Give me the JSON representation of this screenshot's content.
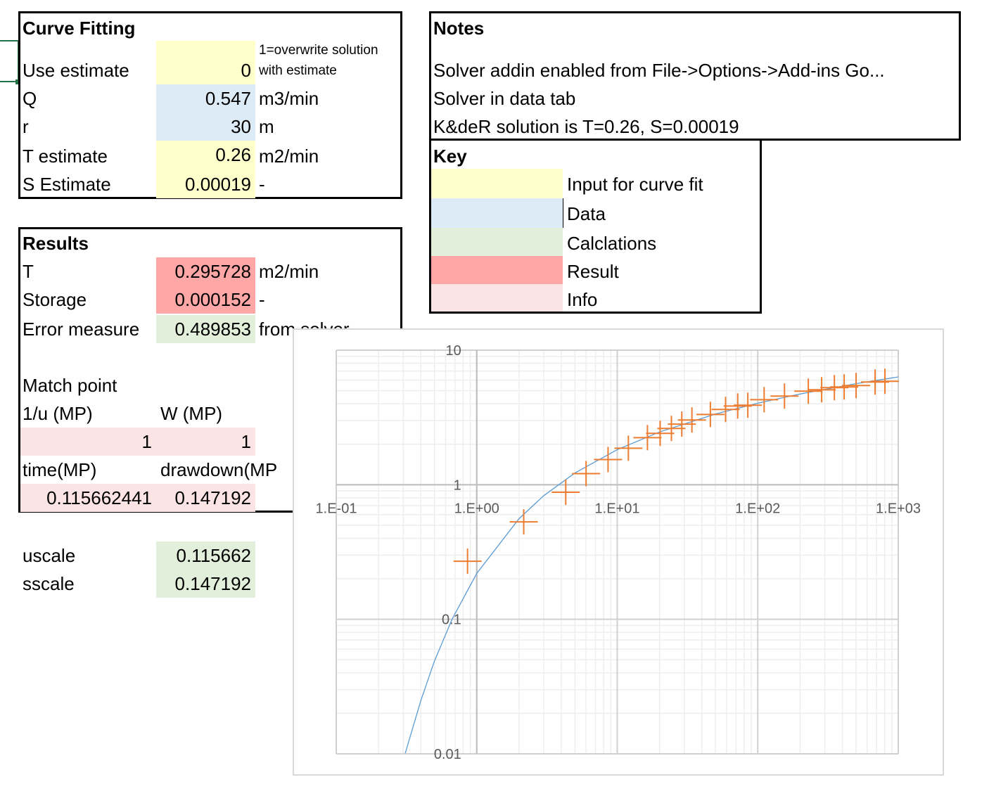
{
  "curve_fitting": {
    "title": "Curve Fitting",
    "note_line1": "1=overwrite solution",
    "note_line2": "with estimate",
    "rows": [
      {
        "label": "Use estimate",
        "value": "0",
        "unit": ""
      },
      {
        "label": "Q",
        "value": "0.547",
        "unit": "m3/min"
      },
      {
        "label": "r",
        "value": "30",
        "unit": "m"
      },
      {
        "label": "T estimate",
        "value": "0.26",
        "unit": "m2/min"
      },
      {
        "label": "S Estimate",
        "value": "0.00019",
        "unit": "-"
      }
    ]
  },
  "results": {
    "title": "Results",
    "rows": [
      {
        "label": "T",
        "value": "0.295728",
        "unit": "m2/min"
      },
      {
        "label": "Storage",
        "value": "0.000152",
        "unit": "-"
      },
      {
        "label": "Error measure",
        "value": "0.489853",
        "unit": "from solver"
      }
    ],
    "match_point": "Match point",
    "inv_u_label": "1/u (MP)",
    "w_label": "W (MP)",
    "inv_u_value": "1",
    "w_value": "1",
    "time_label": "time(MP)",
    "drawdown_label": "drawdown(MP",
    "time_value": "0.115662441",
    "drawdown_value": "0.147192"
  },
  "scales": {
    "uscale_label": "uscale",
    "uscale_value": "0.115662",
    "sscale_label": "sscale",
    "sscale_value": "0.147192"
  },
  "notes": {
    "title": "Notes",
    "lines": [
      "Solver addin enabled from File->Options->Add-ins Go...",
      "Solver in data tab",
      "K&deR solution is T=0.26, S=0.00019"
    ]
  },
  "key": {
    "title": "Key",
    "items": [
      {
        "label": "Input for curve fit",
        "color": "#FFFFCC"
      },
      {
        "label": "Data",
        "color": "#DDEBF7"
      },
      {
        "label": "Calclations",
        "color": "#E2EFDA"
      },
      {
        "label": "Result",
        "color": "#FFA7A7"
      },
      {
        "label": "Info",
        "color": "#FCE4E4"
      }
    ]
  },
  "chart_data": {
    "type": "scatter",
    "x_scale": "log",
    "y_scale": "log",
    "xlim": [
      0.1,
      1000
    ],
    "ylim": [
      0.01,
      10
    ],
    "x_tick_labels": [
      "1.E-01",
      "1.E+00",
      "1.E+01",
      "1.E+02",
      "1.E+03"
    ],
    "y_tick_labels": [
      "10",
      "1",
      "0.1",
      "0.01"
    ],
    "grid": true,
    "series": [
      {
        "kind": "line",
        "color": "#5B9BD5",
        "x": [
          0.31,
          0.4,
          0.5,
          0.667,
          1,
          2,
          3,
          5,
          10,
          20,
          50,
          100,
          200,
          500,
          1000
        ],
        "y": [
          0.0101,
          0.0249,
          0.0489,
          0.1,
          0.2194,
          0.5598,
          0.83,
          1.2227,
          1.8229,
          2.4679,
          3.3547,
          4.0379,
          4.7261,
          5.6394,
          6.3316
        ]
      },
      {
        "kind": "markers",
        "marker": "plus",
        "color": "#ED7D31",
        "x": [
          0.86,
          2.16,
          4.3,
          6.0,
          8.6,
          12,
          16.4,
          20.2,
          24.3,
          28.8,
          34,
          46,
          59,
          72,
          85,
          111,
          155,
          229,
          285,
          351,
          412,
          501,
          684,
          804
        ],
        "y": [
          0.27,
          0.53,
          0.88,
          1.21,
          1.54,
          1.87,
          2.24,
          2.41,
          2.62,
          2.82,
          3.03,
          3.33,
          3.63,
          3.85,
          3.9,
          4.29,
          4.56,
          4.96,
          5.08,
          5.27,
          5.33,
          5.46,
          5.8,
          5.87
        ]
      }
    ]
  }
}
